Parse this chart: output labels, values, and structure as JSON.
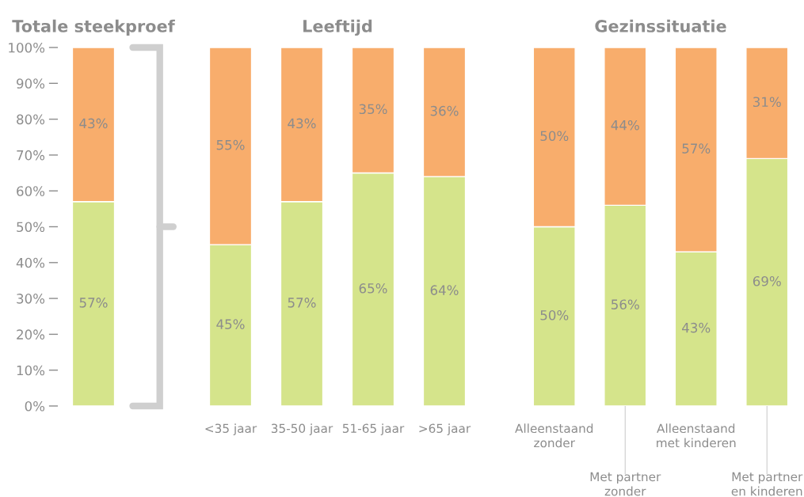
{
  "chart_data": [
    {
      "type": "bar",
      "stacked": true,
      "title": "Totale steekproef",
      "categories": [
        null
      ],
      "ylim": [
        0,
        100
      ],
      "yticks": [
        {
          "value": 0,
          "label": "0%"
        },
        {
          "value": 10,
          "label": "10%"
        },
        {
          "value": 20,
          "label": "20%"
        },
        {
          "value": 30,
          "label": "30%"
        },
        {
          "value": 40,
          "label": "40%"
        },
        {
          "value": 50,
          "label": "50%"
        },
        {
          "value": 60,
          "label": "60%"
        },
        {
          "value": 70,
          "label": "70%"
        },
        {
          "value": 80,
          "label": "80%"
        },
        {
          "value": 90,
          "label": "90%"
        },
        {
          "value": 100,
          "label": "100%"
        }
      ],
      "series": [
        {
          "color": "#d5e48b",
          "values": [
            57
          ],
          "value_labels": [
            "57%"
          ]
        },
        {
          "color": "#f8ad6c",
          "values": [
            43
          ],
          "value_labels": [
            "43%"
          ]
        }
      ]
    },
    {
      "type": "bar",
      "stacked": true,
      "title": "Leeftijd",
      "categories": [
        "<35 jaar",
        "35-50 jaar",
        "51-65 jaar",
        ">65 jaar"
      ],
      "ylim": [
        0,
        100
      ],
      "tick_labels": "x",
      "series": [
        {
          "color": "#d5e48b",
          "values": [
            45,
            57,
            65,
            64
          ],
          "value_labels": [
            "45%",
            "57%",
            "65%",
            "64%"
          ]
        },
        {
          "color": "#f8ad6c",
          "values": [
            55,
            43,
            35,
            36
          ],
          "value_labels": [
            "55%",
            "43%",
            "35%",
            "36%"
          ]
        }
      ]
    },
    {
      "type": "bar",
      "stacked": true,
      "title": "Gezinssituatie",
      "categories": [
        "Alleenstaand\nzonder",
        "Met partner\nzonder",
        "Alleenstaand\nmet kinderen",
        "Met partner\nen kinderen"
      ],
      "ylim": [
        0,
        100
      ],
      "tick_labels": "x",
      "series": [
        {
          "color": "#d5e48b",
          "values": [
            50,
            56,
            43,
            69
          ],
          "value_labels": [
            "50%",
            "56%",
            "43%",
            "69%"
          ]
        },
        {
          "color": "#f8ad6c",
          "values": [
            50,
            44,
            57,
            31
          ],
          "value_labels": [
            "50%",
            "44%",
            "57%",
            "31%"
          ]
        }
      ]
    }
  ]
}
